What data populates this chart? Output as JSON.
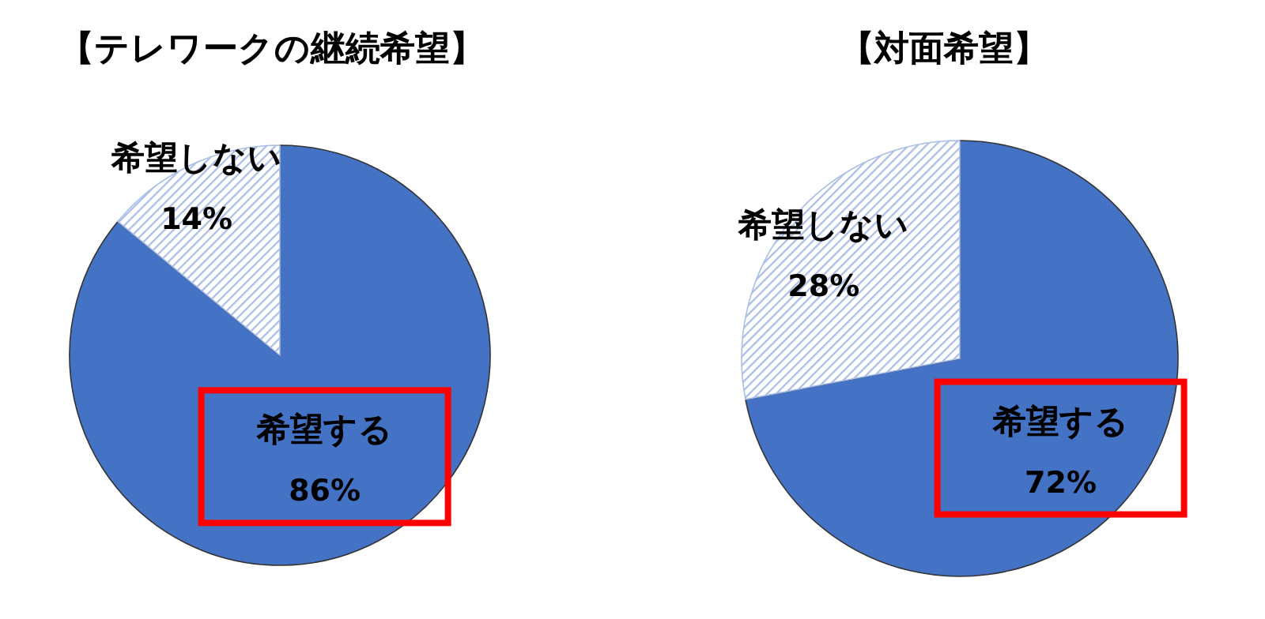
{
  "chart_data": [
    {
      "type": "pie",
      "title": "【テレワークの継続希望】",
      "categories": [
        "希望する",
        "希望しない"
      ],
      "values": [
        86,
        14
      ],
      "colors": [
        "#4472c4",
        "#a9bde6"
      ],
      "value_labels": [
        "86%",
        "14%"
      ]
    },
    {
      "type": "pie",
      "title": "【対面希望】",
      "categories": [
        "希望する",
        "希望しない"
      ],
      "values": [
        72,
        28
      ],
      "colors": [
        "#4472c4",
        "#a9bde6"
      ],
      "value_labels": [
        "72%",
        "28%"
      ]
    }
  ]
}
